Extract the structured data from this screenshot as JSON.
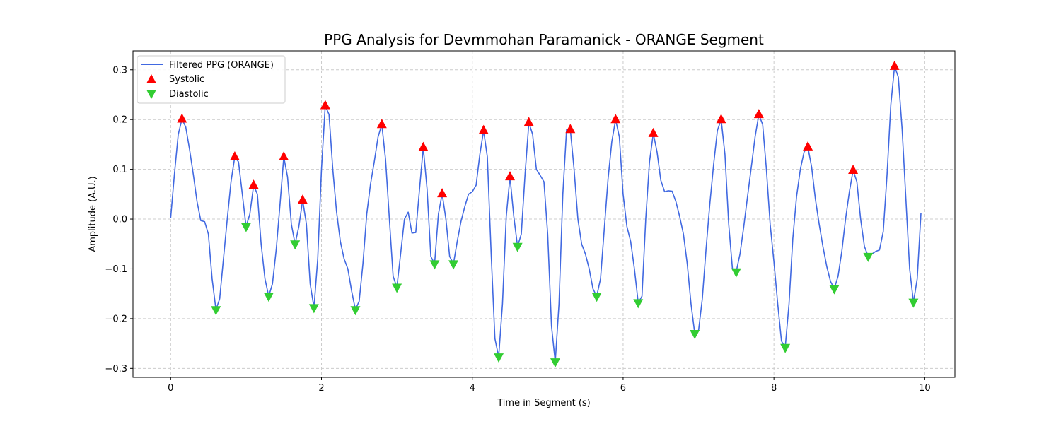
{
  "chart_data": {
    "type": "line",
    "title": "PPG Analysis for Devmmohan Paramanick - ORANGE Segment",
    "xlabel": "Time in Segment (s)",
    "ylabel": "Amplitude (A.U.)",
    "xlim": [
      -0.5,
      10.4
    ],
    "ylim": [
      -0.318,
      0.338
    ],
    "xticks": [
      0,
      2,
      4,
      6,
      8,
      10
    ],
    "yticks": [
      -0.3,
      -0.2,
      -0.1,
      0.0,
      0.1,
      0.2,
      0.3
    ],
    "xtick_labels": [
      "0",
      "2",
      "4",
      "6",
      "8",
      "10"
    ],
    "ytick_labels": [
      "−0.3",
      "−0.2",
      "−0.1",
      "0.0",
      "0.1",
      "0.2",
      "0.3"
    ],
    "grid": true,
    "legend_position": "top-left",
    "series": [
      {
        "name": "Filtered PPG (ORANGE)",
        "kind": "line",
        "color": "#4169e1",
        "points": [
          [
            0.0,
            0.002
          ],
          [
            0.05,
            0.09
          ],
          [
            0.1,
            0.17
          ],
          [
            0.15,
            0.201
          ],
          [
            0.2,
            0.185
          ],
          [
            0.25,
            0.14
          ],
          [
            0.3,
            0.09
          ],
          [
            0.35,
            0.035
          ],
          [
            0.4,
            -0.003
          ],
          [
            0.45,
            -0.005
          ],
          [
            0.5,
            -0.03
          ],
          [
            0.55,
            -0.12
          ],
          [
            0.6,
            -0.182
          ],
          [
            0.65,
            -0.16
          ],
          [
            0.7,
            -0.08
          ],
          [
            0.75,
            0.0
          ],
          [
            0.8,
            0.075
          ],
          [
            0.85,
            0.125
          ],
          [
            0.9,
            0.115
          ],
          [
            0.95,
            0.05
          ],
          [
            1.0,
            -0.015
          ],
          [
            1.05,
            0.01
          ],
          [
            1.1,
            0.068
          ],
          [
            1.15,
            0.05
          ],
          [
            1.2,
            -0.05
          ],
          [
            1.25,
            -0.12
          ],
          [
            1.3,
            -0.155
          ],
          [
            1.35,
            -0.13
          ],
          [
            1.4,
            -0.06
          ],
          [
            1.45,
            0.03
          ],
          [
            1.5,
            0.125
          ],
          [
            1.55,
            0.085
          ],
          [
            1.6,
            -0.01
          ],
          [
            1.65,
            -0.05
          ],
          [
            1.7,
            -0.015
          ],
          [
            1.75,
            0.038
          ],
          [
            1.8,
            -0.01
          ],
          [
            1.85,
            -0.13
          ],
          [
            1.9,
            -0.178
          ],
          [
            1.95,
            -0.08
          ],
          [
            2.0,
            0.1
          ],
          [
            2.05,
            0.228
          ],
          [
            2.1,
            0.21
          ],
          [
            2.15,
            0.1
          ],
          [
            2.2,
            0.015
          ],
          [
            2.25,
            -0.045
          ],
          [
            2.3,
            -0.08
          ],
          [
            2.35,
            -0.1
          ],
          [
            2.4,
            -0.145
          ],
          [
            2.45,
            -0.182
          ],
          [
            2.5,
            -0.165
          ],
          [
            2.55,
            -0.09
          ],
          [
            2.6,
            0.01
          ],
          [
            2.65,
            0.07
          ],
          [
            2.7,
            0.115
          ],
          [
            2.75,
            0.165
          ],
          [
            2.8,
            0.19
          ],
          [
            2.85,
            0.12
          ],
          [
            2.9,
            0.0
          ],
          [
            2.95,
            -0.115
          ],
          [
            3.0,
            -0.137
          ],
          [
            3.05,
            -0.07
          ],
          [
            3.1,
            0.0
          ],
          [
            3.15,
            0.014
          ],
          [
            3.2,
            -0.028
          ],
          [
            3.25,
            -0.027
          ],
          [
            3.3,
            0.06
          ],
          [
            3.35,
            0.144
          ],
          [
            3.4,
            0.06
          ],
          [
            3.45,
            -0.075
          ],
          [
            3.5,
            -0.09
          ],
          [
            3.55,
            0.01
          ],
          [
            3.6,
            0.051
          ],
          [
            3.65,
            0.0
          ],
          [
            3.7,
            -0.075
          ],
          [
            3.75,
            -0.09
          ],
          [
            3.8,
            -0.045
          ],
          [
            3.85,
            -0.005
          ],
          [
            3.9,
            0.025
          ],
          [
            3.95,
            0.05
          ],
          [
            4.0,
            0.055
          ],
          [
            4.05,
            0.068
          ],
          [
            4.1,
            0.13
          ],
          [
            4.15,
            0.178
          ],
          [
            4.2,
            0.125
          ],
          [
            4.25,
            -0.07
          ],
          [
            4.3,
            -0.24
          ],
          [
            4.35,
            -0.277
          ],
          [
            4.4,
            -0.17
          ],
          [
            4.45,
            0.005
          ],
          [
            4.5,
            0.085
          ],
          [
            4.55,
            0.005
          ],
          [
            4.6,
            -0.055
          ],
          [
            4.65,
            -0.03
          ],
          [
            4.7,
            0.09
          ],
          [
            4.75,
            0.194
          ],
          [
            4.8,
            0.17
          ],
          [
            4.85,
            0.1
          ],
          [
            4.9,
            0.088
          ],
          [
            4.95,
            0.075
          ],
          [
            5.0,
            -0.03
          ],
          [
            5.05,
            -0.215
          ],
          [
            5.1,
            -0.287
          ],
          [
            5.15,
            -0.17
          ],
          [
            5.2,
            0.05
          ],
          [
            5.25,
            0.18
          ],
          [
            5.3,
            0.18
          ],
          [
            5.35,
            0.1
          ],
          [
            5.4,
            0.0
          ],
          [
            5.45,
            -0.05
          ],
          [
            5.5,
            -0.07
          ],
          [
            5.55,
            -0.1
          ],
          [
            5.6,
            -0.14
          ],
          [
            5.65,
            -0.155
          ],
          [
            5.7,
            -0.12
          ],
          [
            5.75,
            -0.02
          ],
          [
            5.8,
            0.08
          ],
          [
            5.85,
            0.155
          ],
          [
            5.9,
            0.2
          ],
          [
            5.95,
            0.165
          ],
          [
            6.0,
            0.05
          ],
          [
            6.05,
            -0.015
          ],
          [
            6.1,
            -0.045
          ],
          [
            6.15,
            -0.1
          ],
          [
            6.2,
            -0.168
          ],
          [
            6.25,
            -0.155
          ],
          [
            6.3,
            0.0
          ],
          [
            6.35,
            0.115
          ],
          [
            6.4,
            0.172
          ],
          [
            6.45,
            0.135
          ],
          [
            6.5,
            0.078
          ],
          [
            6.55,
            0.055
          ],
          [
            6.6,
            0.057
          ],
          [
            6.65,
            0.056
          ],
          [
            6.7,
            0.035
          ],
          [
            6.75,
            0.005
          ],
          [
            6.8,
            -0.03
          ],
          [
            6.85,
            -0.09
          ],
          [
            6.9,
            -0.17
          ],
          [
            6.95,
            -0.23
          ],
          [
            7.0,
            -0.225
          ],
          [
            7.05,
            -0.16
          ],
          [
            7.1,
            -0.06
          ],
          [
            7.15,
            0.03
          ],
          [
            7.2,
            0.11
          ],
          [
            7.25,
            0.178
          ],
          [
            7.3,
            0.2
          ],
          [
            7.35,
            0.13
          ],
          [
            7.4,
            -0.01
          ],
          [
            7.45,
            -0.1
          ],
          [
            7.5,
            -0.106
          ],
          [
            7.55,
            -0.07
          ],
          [
            7.6,
            -0.015
          ],
          [
            7.65,
            0.045
          ],
          [
            7.7,
            0.105
          ],
          [
            7.75,
            0.165
          ],
          [
            7.8,
            0.21
          ],
          [
            7.85,
            0.19
          ],
          [
            7.9,
            0.1
          ],
          [
            7.95,
            -0.01
          ],
          [
            8.0,
            -0.085
          ],
          [
            8.05,
            -0.17
          ],
          [
            8.1,
            -0.245
          ],
          [
            8.15,
            -0.258
          ],
          [
            8.2,
            -0.17
          ],
          [
            8.25,
            -0.04
          ],
          [
            8.3,
            0.045
          ],
          [
            8.35,
            0.1
          ],
          [
            8.4,
            0.135
          ],
          [
            8.45,
            0.145
          ],
          [
            8.5,
            0.105
          ],
          [
            8.55,
            0.04
          ],
          [
            8.6,
            -0.01
          ],
          [
            8.65,
            -0.055
          ],
          [
            8.7,
            -0.095
          ],
          [
            8.75,
            -0.125
          ],
          [
            8.8,
            -0.14
          ],
          [
            8.85,
            -0.115
          ],
          [
            8.9,
            -0.065
          ],
          [
            8.95,
            0.0
          ],
          [
            9.0,
            0.055
          ],
          [
            9.05,
            0.098
          ],
          [
            9.1,
            0.075
          ],
          [
            9.15,
            0.0
          ],
          [
            9.2,
            -0.055
          ],
          [
            9.25,
            -0.075
          ],
          [
            9.3,
            -0.07
          ],
          [
            9.35,
            -0.065
          ],
          [
            9.4,
            -0.062
          ],
          [
            9.45,
            -0.025
          ],
          [
            9.5,
            0.09
          ],
          [
            9.55,
            0.23
          ],
          [
            9.6,
            0.307
          ],
          [
            9.65,
            0.285
          ],
          [
            9.7,
            0.18
          ],
          [
            9.75,
            0.04
          ],
          [
            9.8,
            -0.1
          ],
          [
            9.85,
            -0.167
          ],
          [
            9.9,
            -0.12
          ],
          [
            9.95,
            0.012
          ]
        ]
      },
      {
        "name": "Systolic",
        "kind": "marker",
        "marker": "triangle-up",
        "color": "#ff0000",
        "points": [
          [
            0.15,
            0.201
          ],
          [
            0.85,
            0.125
          ],
          [
            1.1,
            0.068
          ],
          [
            1.5,
            0.125
          ],
          [
            1.75,
            0.038
          ],
          [
            2.05,
            0.228
          ],
          [
            2.8,
            0.19
          ],
          [
            3.35,
            0.144
          ],
          [
            3.6,
            0.051
          ],
          [
            4.15,
            0.178
          ],
          [
            4.5,
            0.085
          ],
          [
            4.75,
            0.194
          ],
          [
            5.3,
            0.18
          ],
          [
            5.9,
            0.2
          ],
          [
            6.4,
            0.172
          ],
          [
            7.3,
            0.2
          ],
          [
            7.8,
            0.21
          ],
          [
            8.45,
            0.145
          ],
          [
            9.05,
            0.098
          ],
          [
            9.6,
            0.307
          ]
        ]
      },
      {
        "name": "Diastolic",
        "kind": "marker",
        "marker": "triangle-down",
        "color": "#32cd32",
        "points": [
          [
            0.6,
            -0.182
          ],
          [
            1.0,
            -0.015
          ],
          [
            1.3,
            -0.155
          ],
          [
            1.65,
            -0.05
          ],
          [
            1.9,
            -0.178
          ],
          [
            2.45,
            -0.182
          ],
          [
            3.0,
            -0.137
          ],
          [
            3.5,
            -0.09
          ],
          [
            3.75,
            -0.09
          ],
          [
            4.35,
            -0.277
          ],
          [
            4.6,
            -0.055
          ],
          [
            5.1,
            -0.287
          ],
          [
            5.65,
            -0.155
          ],
          [
            6.2,
            -0.168
          ],
          [
            6.95,
            -0.23
          ],
          [
            7.5,
            -0.106
          ],
          [
            8.15,
            -0.258
          ],
          [
            8.8,
            -0.14
          ],
          [
            9.25,
            -0.075
          ],
          [
            9.85,
            -0.167
          ]
        ]
      }
    ]
  }
}
